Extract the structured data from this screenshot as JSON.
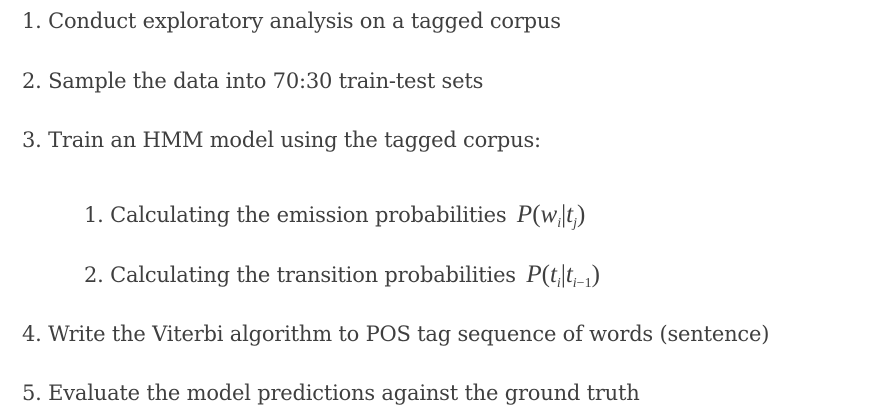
{
  "steps": [
    {
      "number": "1.",
      "text": "Conduct exploratory analysis on a tagged corpus"
    },
    {
      "number": "2.",
      "text": "Sample the data into 70:30 train-test sets"
    },
    {
      "number": "3.",
      "text": "Train an HMM model using the tagged corpus:"
    },
    {
      "number": "4.",
      "text": "Write the Viterbi algorithm to POS tag sequence of words (sentence)"
    },
    {
      "number": "5.",
      "text": "Evaluate the model predictions against the ground truth"
    }
  ],
  "substeps": [
    {
      "number": "1.",
      "text": "Calculating the emission probabilities",
      "formula": "P(w_i|t_j)"
    },
    {
      "number": "2.",
      "text": "Calculating the transition probabilities",
      "formula": "P(t_i|t_{i-1})"
    }
  ]
}
